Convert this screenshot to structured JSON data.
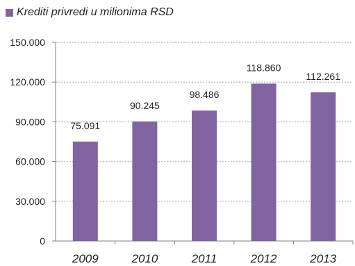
{
  "chart_data": {
    "type": "bar",
    "categories": [
      "2009",
      "2010",
      "2011",
      "2012",
      "2013"
    ],
    "series": [
      {
        "name": "Krediti privredi u milionima RSD",
        "values": [
          75091,
          90245,
          98486,
          118860,
          112261
        ],
        "data_labels": [
          "75.091",
          "90.245",
          "98.486",
          "118.860",
          "112.261"
        ]
      }
    ],
    "ylim": [
      0,
      150000
    ],
    "yticks": [
      0,
      30000,
      60000,
      90000,
      120000,
      150000
    ],
    "ytick_labels": [
      "0",
      "30.000",
      "60.000",
      "90.000",
      "120.000",
      "150.000"
    ],
    "grid": "horizontal dotted",
    "legend_position": "top-left",
    "bar_color": "#8064a2",
    "grid_color": "#bfbfbf",
    "axis_color": "#808080",
    "text_color": "#222222"
  }
}
